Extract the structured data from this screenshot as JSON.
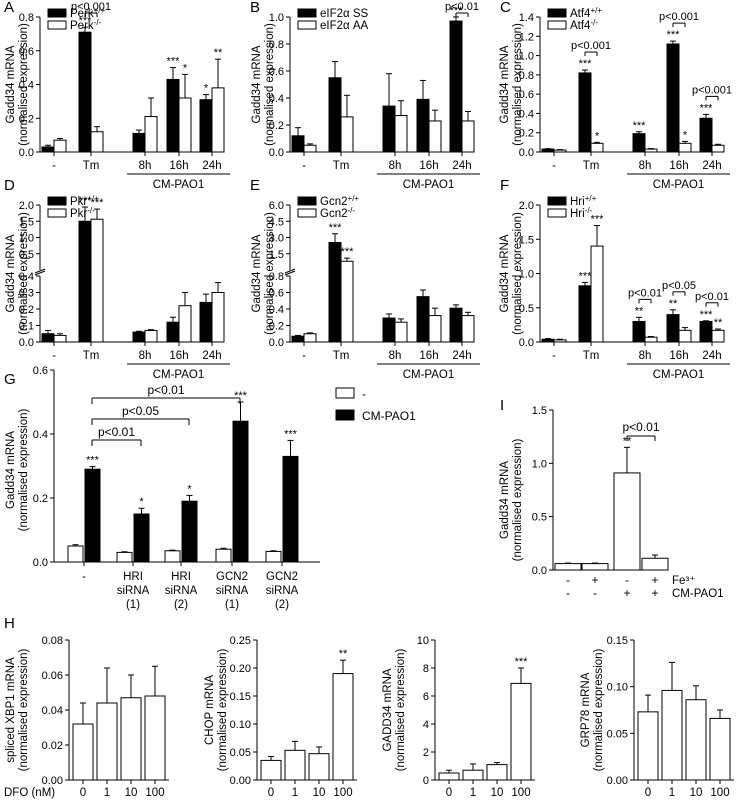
{
  "chart_data": [
    {
      "panel": "A",
      "type": "bar",
      "ylabel": [
        "Gadd34 mRNA",
        "(normalised expression)"
      ],
      "ylim": [
        0,
        0.8
      ],
      "yticks": [
        "0.0",
        "0.2",
        "0.4",
        "0.6",
        "0.8"
      ],
      "categories": [
        "-",
        "Tm",
        "8h",
        "16h",
        "24h"
      ],
      "group_label": "CM-PAO1",
      "series": [
        {
          "name": "Perk+/+",
          "values": [
            0.03,
            0.71,
            0.11,
            0.43,
            0.31
          ],
          "errors": [
            0.01,
            0.03,
            0.02,
            0.07,
            0.03
          ],
          "stars": [
            "",
            "***",
            "",
            "***",
            "*"
          ]
        },
        {
          "name": "Perk-/-",
          "values": [
            0.07,
            0.12,
            0.21,
            0.32,
            0.38
          ],
          "errors": [
            0.01,
            0.03,
            0.11,
            0.14,
            0.17
          ],
          "stars": [
            "",
            "",
            "",
            "*",
            "**"
          ]
        }
      ],
      "comparisons": [
        {
          "label": "p<0.001",
          "category": 1
        }
      ]
    },
    {
      "panel": "B",
      "type": "bar",
      "ylabel": [
        "Gadd34 mRNA",
        "(normalised expression)"
      ],
      "ylim": [
        0,
        1.0
      ],
      "yticks": [
        "0.0",
        "0.2",
        "0.4",
        "0.6",
        "0.8",
        "1.0"
      ],
      "categories": [
        "-",
        "Tm",
        "8h",
        "16h",
        "24h"
      ],
      "group_label": "CM-PAO1",
      "series": [
        {
          "name": "eIF2α SS",
          "values": [
            0.12,
            0.55,
            0.34,
            0.39,
            0.97
          ],
          "errors": [
            0.06,
            0.12,
            0.24,
            0.14,
            0.03
          ],
          "stars": [
            "",
            "",
            "",
            "",
            "***"
          ]
        },
        {
          "name": "eIF2α AA",
          "values": [
            0.05,
            0.26,
            0.27,
            0.23,
            0.23
          ],
          "errors": [
            0.01,
            0.16,
            0.11,
            0.08,
            0.07
          ],
          "stars": [
            "",
            "",
            "",
            "",
            ""
          ]
        }
      ],
      "comparisons": [
        {
          "label": "p<0.01",
          "category": 4
        }
      ]
    },
    {
      "panel": "C",
      "type": "bar",
      "ylabel": [
        "Gadd34 mRNA",
        "(normalised expression)"
      ],
      "ylim": [
        0,
        1.4
      ],
      "yticks": [
        "0.0",
        "0.2",
        "0.4",
        "0.6",
        "0.8",
        "1.0",
        "1.2",
        "1.4"
      ],
      "categories": [
        "-",
        "Tm",
        "8h",
        "16h",
        "24h"
      ],
      "group_label": "CM-PAO1",
      "series": [
        {
          "name": "Atf4+/+",
          "values": [
            0.03,
            0.82,
            0.19,
            1.12,
            0.35
          ],
          "errors": [
            0.005,
            0.03,
            0.02,
            0.03,
            0.04
          ],
          "stars": [
            "",
            "***",
            "***",
            "***",
            "***"
          ]
        },
        {
          "name": "Atf4-/-",
          "values": [
            0.02,
            0.09,
            0.03,
            0.09,
            0.07
          ],
          "errors": [
            0.005,
            0.01,
            0.005,
            0.02,
            0.01
          ],
          "stars": [
            "",
            "*",
            "",
            "*",
            ""
          ]
        }
      ],
      "comparisons": [
        {
          "label": "p<0.001",
          "category": 1
        },
        {
          "label": "p<0.001",
          "category": 3
        },
        {
          "label": "p<0.001",
          "category": 4
        }
      ]
    },
    {
      "panel": "D",
      "type": "bar",
      "axis_break": true,
      "ylabel": [
        "Gadd34 mRNA",
        "(normalised expression)"
      ],
      "ylim": [
        0,
        2.0
      ],
      "yticks": [
        "0.0",
        "0.1",
        "0.2",
        "0.3",
        "0.4",
        "0.5",
        "1.0",
        "1.5",
        "2.0"
      ],
      "categories": [
        "-",
        "Tm",
        "8h",
        "16h",
        "24h"
      ],
      "group_label": "CM-PAO1",
      "series": [
        {
          "name": "Pkr+/+",
          "values": [
            0.05,
            1.6,
            0.06,
            0.12,
            0.24
          ],
          "errors": [
            0.02,
            0.35,
            0.005,
            0.03,
            0.05
          ],
          "stars": [
            "",
            "***",
            "",
            "",
            ""
          ]
        },
        {
          "name": "Pkr-/-",
          "values": [
            0.04,
            1.65,
            0.07,
            0.22,
            0.3
          ],
          "errors": [
            0.01,
            0.25,
            0.005,
            0.08,
            0.06
          ],
          "stars": [
            "",
            "***",
            "",
            "",
            ""
          ]
        }
      ],
      "comparisons": []
    },
    {
      "panel": "E",
      "type": "bar",
      "axis_break": true,
      "ylabel": [
        "Gadd34 mRNA",
        "(normalised expression)"
      ],
      "ylim": [
        0,
        6.0
      ],
      "yticks": [
        "0.0",
        "0.2",
        "0.4",
        "0.6",
        "0.8",
        "1.5",
        "3.0",
        "4.5",
        "6.0"
      ],
      "categories": [
        "-",
        "Tm",
        "8h",
        "16h",
        "24h"
      ],
      "group_label": "CM-PAO1",
      "series": [
        {
          "name": "Gcn2+/+",
          "values": [
            0.07,
            3.0,
            0.29,
            0.55,
            0.41
          ],
          "errors": [
            0.01,
            0.7,
            0.05,
            0.08,
            0.04
          ],
          "stars": [
            "",
            "***",
            "",
            "",
            ""
          ]
        },
        {
          "name": "Gcn2-/-",
          "values": [
            0.1,
            1.5,
            0.24,
            0.32,
            0.32
          ],
          "errors": [
            0.01,
            0.25,
            0.04,
            0.09,
            0.04
          ],
          "stars": [
            "",
            "***",
            "",
            "",
            ""
          ]
        }
      ],
      "comparisons": []
    },
    {
      "panel": "F",
      "type": "bar",
      "ylabel": [
        "Gadd34 mRNA",
        "(normalised expression)"
      ],
      "ylim": [
        0,
        2.0
      ],
      "yticks": [
        "0.0",
        "0.5",
        "1.0",
        "1.5",
        "2.0"
      ],
      "categories": [
        "-",
        "Tm",
        "8h",
        "16h",
        "24h"
      ],
      "group_label": "CM-PAO1",
      "series": [
        {
          "name": "Hri+/+",
          "values": [
            0.04,
            0.82,
            0.3,
            0.4,
            0.3
          ],
          "errors": [
            0.01,
            0.05,
            0.06,
            0.07,
            0.01
          ],
          "stars": [
            "",
            "***",
            "**",
            "**",
            "***"
          ]
        },
        {
          "name": "Hri-/-",
          "values": [
            0.03,
            1.4,
            0.07,
            0.17,
            0.17
          ],
          "errors": [
            0.01,
            0.3,
            0.01,
            0.04,
            0.02
          ],
          "stars": [
            "",
            "***",
            "",
            "",
            "**"
          ]
        }
      ],
      "comparisons": [
        {
          "label": "p<0.01",
          "category": 2
        },
        {
          "label": "p<0.05",
          "category": 3
        },
        {
          "label": "p<0.01",
          "category": 4
        }
      ]
    },
    {
      "panel": "G",
      "type": "bar",
      "ylabel": [
        "Gadd34 mRNA",
        "(normalised expression)"
      ],
      "ylim": [
        0,
        0.6
      ],
      "yticks": [
        "0.0",
        "0.2",
        "0.4",
        "0.6"
      ],
      "categories": [
        [
          "-"
        ],
        [
          "HRI",
          "siRNA",
          "(1)"
        ],
        [
          "HRI",
          "siRNA",
          "(2)"
        ],
        [
          "GCN2",
          "siRNA",
          "(1)"
        ],
        [
          "GCN2",
          "siRNA",
          "(2)"
        ]
      ],
      "series": [
        {
          "name": "-",
          "values": [
            0.05,
            0.03,
            0.035,
            0.04,
            0.033
          ],
          "errors": [
            0.004,
            0.002,
            0.002,
            0.003,
            0.002
          ],
          "stars": [
            "",
            "",
            "",
            "",
            ""
          ]
        },
        {
          "name": "CM-PAO1",
          "values": [
            0.29,
            0.15,
            0.19,
            0.44,
            0.33
          ],
          "errors": [
            0.008,
            0.018,
            0.018,
            0.06,
            0.05
          ],
          "stars": [
            "***",
            "*",
            "*",
            "***",
            "***"
          ]
        }
      ],
      "comparisons": [
        {
          "label": "p<0.01",
          "from": 0,
          "to": 1
        },
        {
          "label": "p<0.05",
          "from": 0,
          "to": 2
        },
        {
          "label": "p<0.01",
          "from": 0,
          "to": 3
        }
      ]
    },
    {
      "panel": "I",
      "type": "bar",
      "ylabel": [
        "Gadd34 mRNA",
        "(normalised expression)"
      ],
      "ylim": [
        0,
        1.5
      ],
      "yticks": [
        "0.0",
        "0.5",
        "1.0",
        "1.5"
      ],
      "rows": [
        {
          "label": "Fe³⁺",
          "marks": [
            "-",
            "+",
            "-",
            "+"
          ]
        },
        {
          "label": "CM-PAO1",
          "marks": [
            "-",
            "-",
            "+",
            "+"
          ]
        }
      ],
      "values": [
        0.06,
        0.06,
        0.91,
        0.11
      ],
      "errors": [
        0.005,
        0.005,
        0.24,
        0.03
      ],
      "stars": [
        "",
        "",
        "**",
        ""
      ],
      "comparisons": [
        {
          "label": "p<0.01",
          "from": 2,
          "to": 3
        }
      ]
    },
    {
      "panel": "H",
      "type": "bar",
      "ylabel": [
        "spliced XBP1 mRNA",
        "(normalised expression)"
      ],
      "xlabel": "DFO (nM)",
      "ylim": [
        0,
        0.08
      ],
      "yticks": [
        "0.00",
        "0.02",
        "0.04",
        "0.06",
        "0.08"
      ],
      "categories": [
        "0",
        "1",
        "10",
        "100"
      ],
      "values": [
        0.032,
        0.044,
        0.047,
        0.048
      ],
      "errors": [
        0.012,
        0.02,
        0.013,
        0.017
      ],
      "stars": [
        "",
        "",
        "",
        ""
      ]
    },
    {
      "panel": "",
      "type": "bar",
      "ylabel": [
        "CHOP mRNA",
        "(normalised expression)"
      ],
      "xlabel": "",
      "ylim": [
        0,
        0.25
      ],
      "yticks": [
        "0.00",
        "0.05",
        "0.10",
        "0.15",
        "0.20",
        "0.25"
      ],
      "categories": [
        "0",
        "1",
        "10",
        "100"
      ],
      "values": [
        0.035,
        0.053,
        0.047,
        0.19
      ],
      "errors": [
        0.007,
        0.016,
        0.012,
        0.024
      ],
      "stars": [
        "",
        "",
        "",
        "**"
      ]
    },
    {
      "panel": "",
      "type": "bar",
      "ylabel": [
        "GADD34 mRNA",
        "(normalised expression)"
      ],
      "xlabel": "",
      "ylim": [
        0,
        10
      ],
      "yticks": [
        "0",
        "2",
        "4",
        "6",
        "8",
        "10"
      ],
      "categories": [
        "0",
        "1",
        "10",
        "100"
      ],
      "values": [
        0.5,
        0.7,
        1.1,
        6.9
      ],
      "errors": [
        0.2,
        0.45,
        0.15,
        1.1
      ],
      "stars": [
        "",
        "",
        "",
        "***"
      ]
    },
    {
      "panel": "",
      "type": "bar",
      "ylabel": [
        "GRP78 mRNA",
        "(normalised expression)"
      ],
      "xlabel": "",
      "ylim": [
        0,
        0.15
      ],
      "yticks": [
        "0.00",
        "0.05",
        "0.10",
        "0.15"
      ],
      "categories": [
        "0",
        "1",
        "10",
        "100"
      ],
      "values": [
        0.073,
        0.096,
        0.086,
        0.066
      ],
      "errors": [
        0.018,
        0.03,
        0.015,
        0.009
      ],
      "stars": [
        "",
        "",
        "",
        ""
      ]
    }
  ]
}
